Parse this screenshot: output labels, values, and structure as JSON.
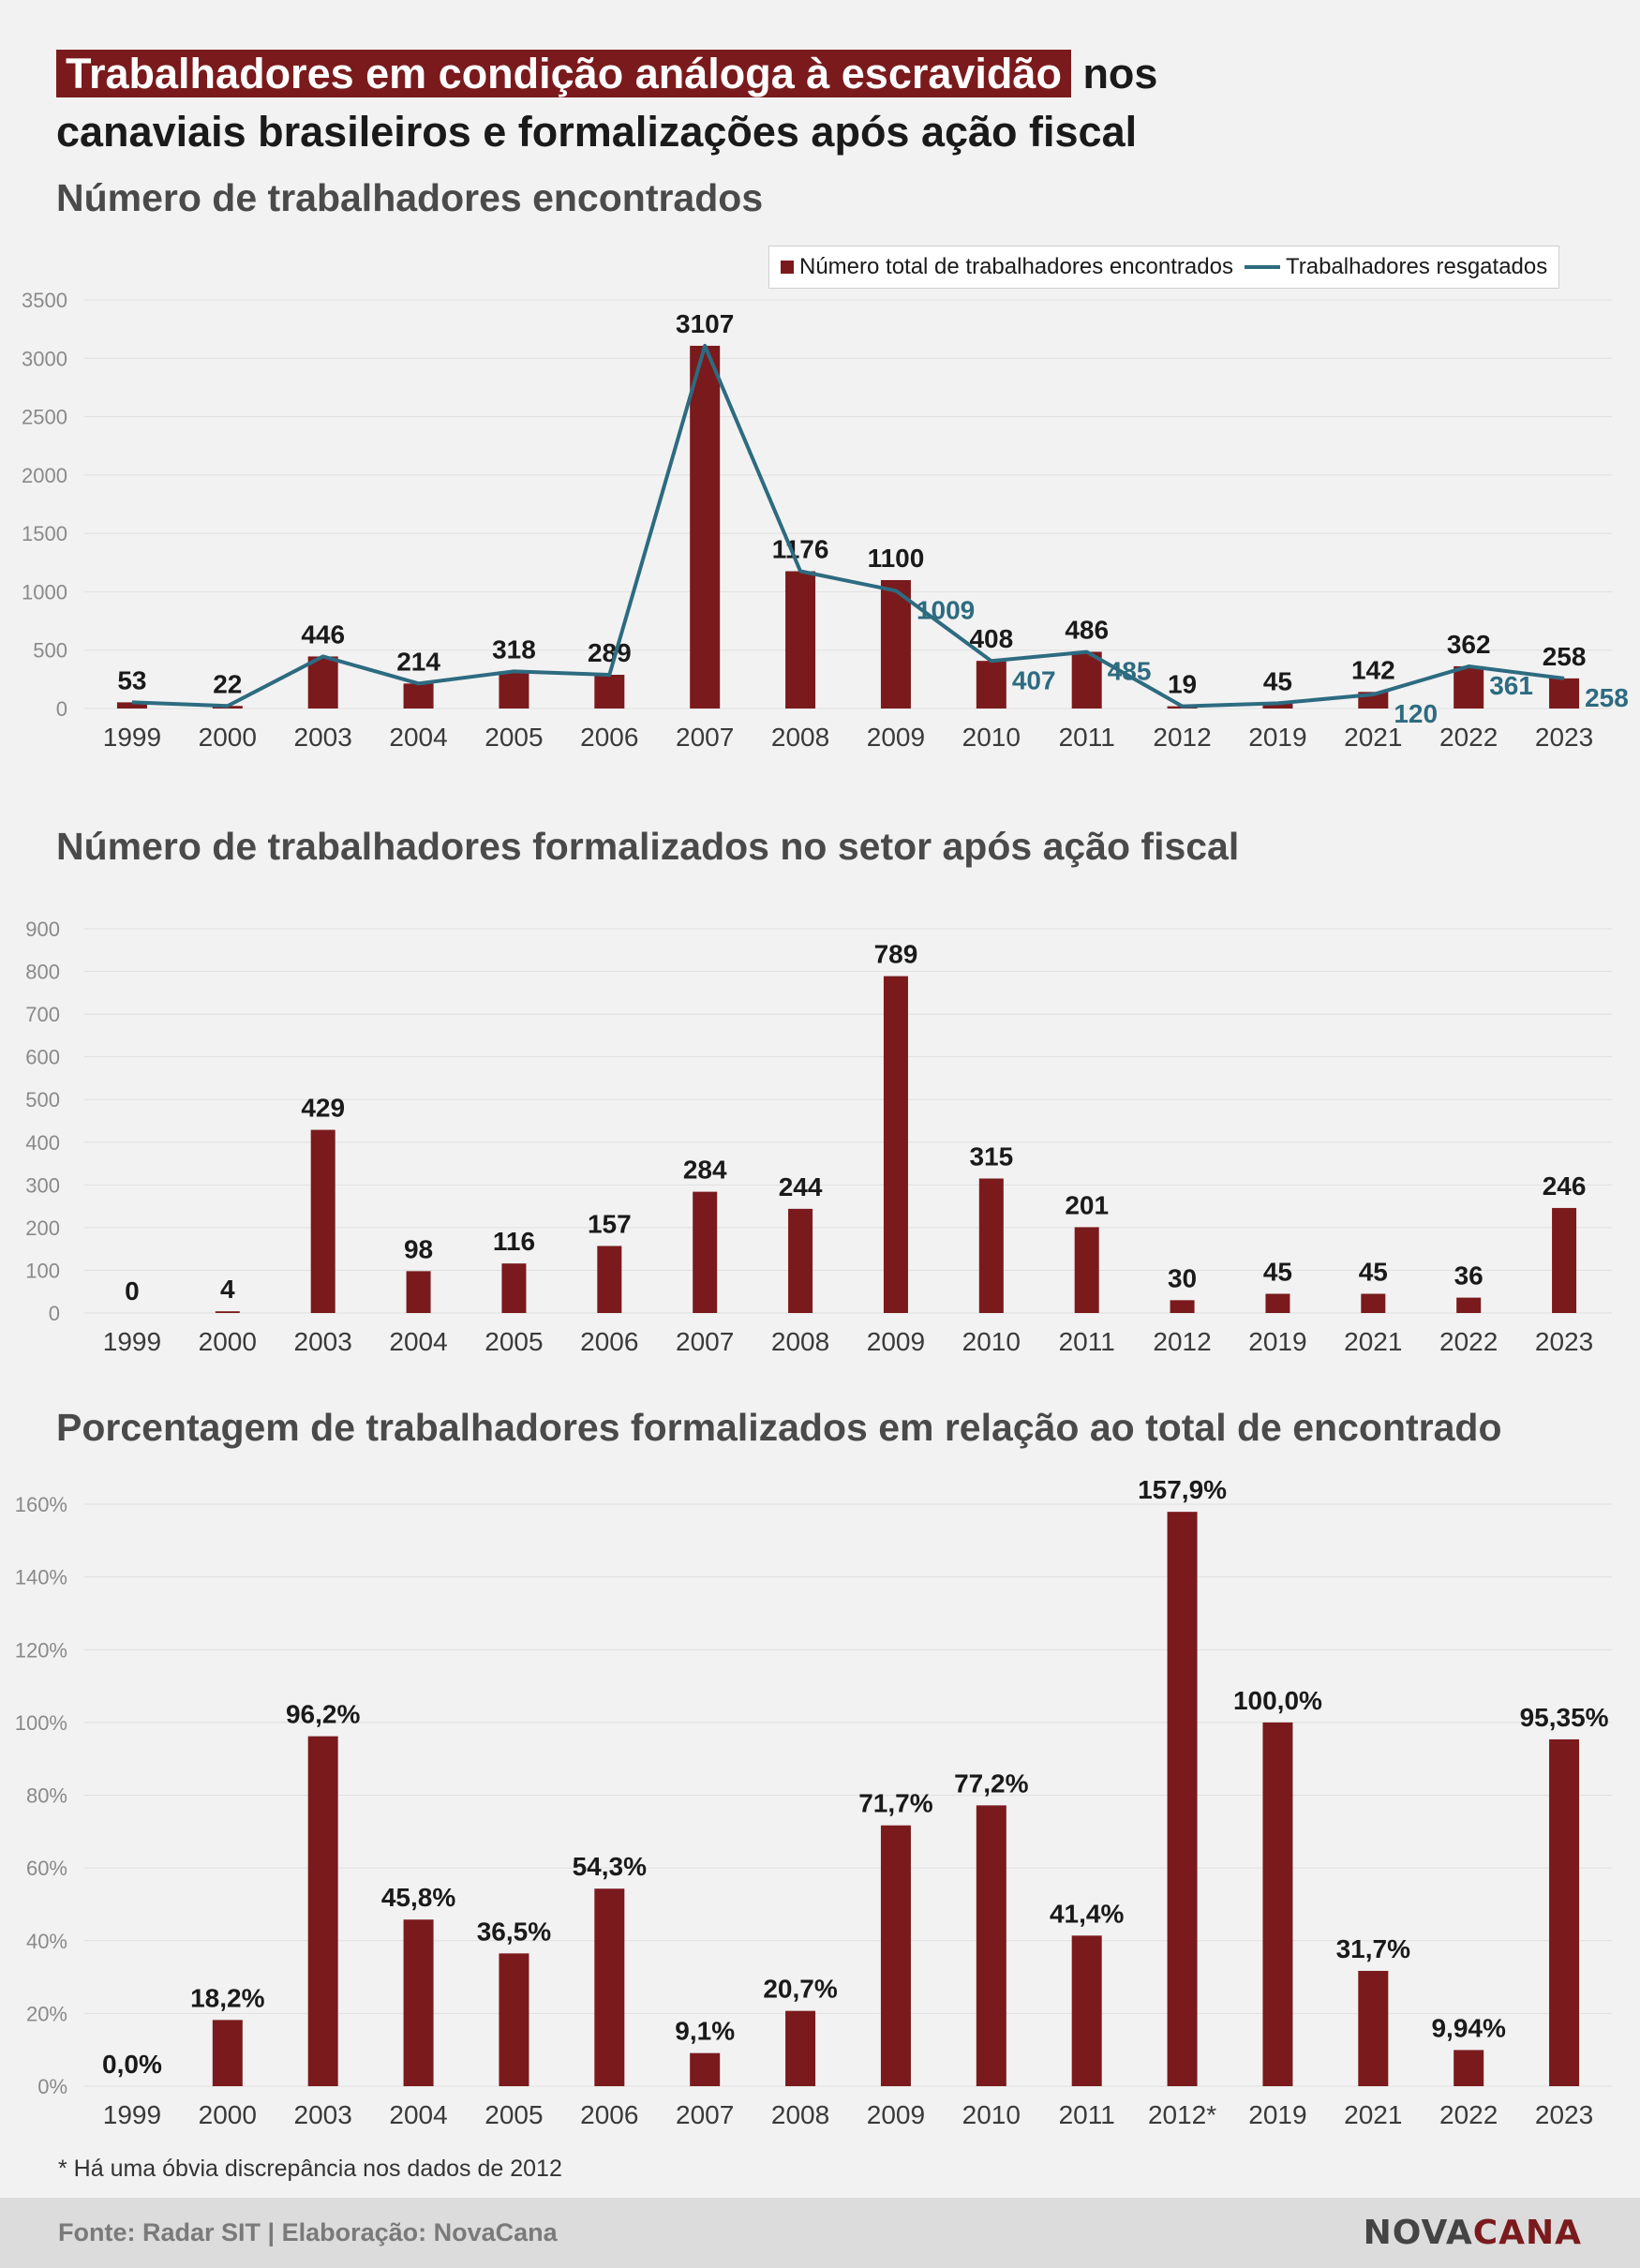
{
  "header": {
    "title_highlight": "Trabalhadores em condição análoga à escravidão",
    "title_rest1": " nos",
    "title_line2": "canaviais brasileiros e formalizações após ação fiscal"
  },
  "colors": {
    "bar": "#7a1a1d",
    "line": "#2d6b80"
  },
  "chart_data": [
    {
      "type": "bar",
      "title": "Número de trabalhadores  encontrados",
      "categories": [
        "1999",
        "2000",
        "2003",
        "2004",
        "2005",
        "2006",
        "2007",
        "2008",
        "2009",
        "2010",
        "2011",
        "2012",
        "2019",
        "2021",
        "2022",
        "2023"
      ],
      "yticks": [
        "0",
        "500",
        "1000",
        "1500",
        "2000",
        "2500",
        "3000",
        "3500"
      ],
      "ylim": [
        0,
        3500
      ],
      "grid": true,
      "legend_position": "top-right",
      "series": [
        {
          "name": "Número total de trabalhadores encontrados",
          "kind": "bar",
          "values": [
            53,
            22,
            446,
            214,
            318,
            289,
            3107,
            1176,
            1100,
            408,
            486,
            19,
            45,
            142,
            362,
            258
          ],
          "labels": [
            "53",
            "22",
            "446",
            "214",
            "318",
            "289",
            "3107",
            "1176",
            "1100",
            "408",
            "486",
            "19",
            "45",
            "142",
            "362",
            "258"
          ]
        },
        {
          "name": "Trabalhadores resgatados",
          "kind": "line",
          "values": [
            53,
            22,
            446,
            214,
            318,
            289,
            3107,
            1176,
            1009,
            407,
            485,
            19,
            45,
            120,
            361,
            258
          ],
          "labels": [
            "",
            "",
            "",
            "",
            "",
            "",
            "",
            "",
            "1009",
            "407",
            "485",
            "",
            "",
            "120",
            "361",
            "258"
          ]
        }
      ]
    },
    {
      "type": "bar",
      "title": "Número de trabalhadores  formalizados  no setor  após  ação fiscal",
      "categories": [
        "1999",
        "2000",
        "2003",
        "2004",
        "2005",
        "2006",
        "2007",
        "2008",
        "2009",
        "2010",
        "2011",
        "2012",
        "2019",
        "2021",
        "2022",
        "2023"
      ],
      "yticks": [
        "0",
        "100",
        "200",
        "300",
        "400",
        "500",
        "600",
        "700",
        "800",
        "900"
      ],
      "ylim": [
        0,
        900
      ],
      "grid": true,
      "series": [
        {
          "kind": "bar",
          "values": [
            0,
            4,
            429,
            98,
            116,
            157,
            284,
            244,
            789,
            315,
            201,
            30,
            45,
            45,
            36,
            246
          ],
          "labels": [
            "0",
            "4",
            "429",
            "98",
            "116",
            "157",
            "284",
            "244",
            "789",
            "315",
            "201",
            "30",
            "45",
            "45",
            "36",
            "246"
          ]
        }
      ]
    },
    {
      "type": "bar",
      "title": "Porcentagem de trabalhadores  formalizados  em relação ao total de encontrado",
      "categories": [
        "1999",
        "2000",
        "2003",
        "2004",
        "2005",
        "2006",
        "2007",
        "2008",
        "2009",
        "2010",
        "2011",
        "2012*",
        "2019",
        "2021",
        "2022",
        "2023"
      ],
      "yticks": [
        "0%",
        "20%",
        "40%",
        "60%",
        "80%",
        "100%",
        "120%",
        "140%",
        "160%"
      ],
      "ylim": [
        0,
        160
      ],
      "grid": true,
      "series": [
        {
          "kind": "bar",
          "values": [
            0.0,
            18.2,
            96.2,
            45.8,
            36.5,
            54.3,
            9.1,
            20.7,
            71.7,
            77.2,
            41.4,
            157.9,
            100.0,
            31.7,
            9.94,
            95.35
          ],
          "labels": [
            "0,0%",
            "18,2%",
            "96,2%",
            "45,8%",
            "36,5%",
            "54,3%",
            "9,1%",
            "20,7%",
            "71,7%",
            "77,2%",
            "41,4%",
            "157,9%",
            "100,0%",
            "31,7%",
            "9,94%",
            "95,35%"
          ]
        }
      ]
    }
  ],
  "footnote": "* Há uma óbvia discrepância nos dados de 2012",
  "footer": {
    "source": "Fonte: Radar SIT | Elaboração: NovaCana",
    "logo_part1": "NOVA",
    "logo_part2": "CANA"
  }
}
